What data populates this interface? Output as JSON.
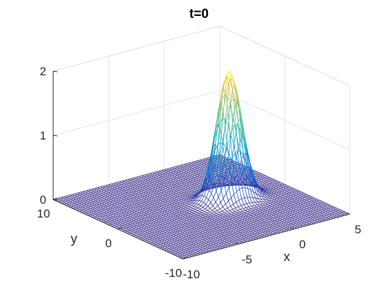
{
  "chart_data": {
    "type": "surface-mesh",
    "title": "t=0",
    "xlabel": "x",
    "ylabel": "y",
    "zlabel": "",
    "xlim": [
      -10,
      5
    ],
    "ylim": [
      -10,
      10
    ],
    "zlim": [
      0,
      2
    ],
    "x_ticks": [
      -10,
      -5,
      0,
      5
    ],
    "y_ticks": [
      -10,
      0,
      10
    ],
    "z_ticks": [
      0,
      1,
      2
    ],
    "x_tick_labels": [
      "-10",
      "-5",
      "0",
      "5"
    ],
    "y_tick_labels": [
      "-10",
      "0",
      "10"
    ],
    "z_tick_labels": [
      "0",
      "1",
      "2"
    ],
    "surface": {
      "function": "gaussian",
      "amplitude": 2.0,
      "center_x": 0,
      "center_y": 0,
      "sigma": 1.0,
      "x_range": [
        -10,
        5
      ],
      "y_range": [
        -10,
        10
      ],
      "grid_points_x": 61,
      "grid_points_y": 61
    },
    "colormap": "parula",
    "grid": true,
    "box": true,
    "view": "3d-default"
  }
}
